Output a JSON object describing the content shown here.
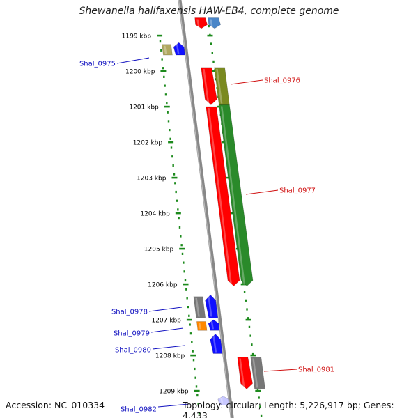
{
  "title": "Shewanella halifaxensis HAW-EB4, complete genome",
  "accession_text": "Accession: NC_010334",
  "topology_text": "Topology: circular; Length: 5,226,917 bp; Genes: 4,433",
  "scale": {
    "unit": "kbp",
    "ticks": [
      {
        "label": "1199 kbp",
        "kbp": 1199
      },
      {
        "label": "1200 kbp",
        "kbp": 1200
      },
      {
        "label": "1201 kbp",
        "kbp": 1201
      },
      {
        "label": "1202 kbp",
        "kbp": 1202
      },
      {
        "label": "1203 kbp",
        "kbp": 1203
      },
      {
        "label": "1204 kbp",
        "kbp": 1204
      },
      {
        "label": "1205 kbp",
        "kbp": 1205
      },
      {
        "label": "1206 kbp",
        "kbp": 1206
      },
      {
        "label": "1207 kbp",
        "kbp": 1207
      },
      {
        "label": "1208 kbp",
        "kbp": 1208
      },
      {
        "label": "1209 kbp",
        "kbp": 1209
      }
    ]
  },
  "gene_labels": [
    {
      "text": "Shal_0975",
      "side": "left",
      "color": "#1010c0"
    },
    {
      "text": "Shal_0976",
      "side": "right",
      "color": "#d01010"
    },
    {
      "text": "Shal_0977",
      "side": "right",
      "color": "#d01010"
    },
    {
      "text": "Shal_0978",
      "side": "left",
      "color": "#1010c0"
    },
    {
      "text": "Shal_0979",
      "side": "left",
      "color": "#1010c0"
    },
    {
      "text": "Shal_0980",
      "side": "left",
      "color": "#1010c0"
    },
    {
      "text": "Shal_0981",
      "side": "right",
      "color": "#d01010"
    },
    {
      "text": "Shal_0982",
      "side": "left",
      "color": "#1010c0"
    }
  ],
  "features": [
    {
      "name": "feature-red-top",
      "start_kbp": 1198.5,
      "end_kbp": 1198.8,
      "color": "#ff0000",
      "track": 1,
      "strand": "-"
    },
    {
      "name": "feature-steelblue-top",
      "start_kbp": 1198.5,
      "end_kbp": 1198.8,
      "color": "#4a86c8",
      "track": 2,
      "strand": "-"
    },
    {
      "name": "feature-khaki-0975",
      "start_kbp": 1199.25,
      "end_kbp": 1199.55,
      "color": "#b0a860",
      "track": -2,
      "strand": "none"
    },
    {
      "name": "feature-blue-0975",
      "start_kbp": 1199.2,
      "end_kbp": 1199.55,
      "color": "#1010ff",
      "track": -1,
      "strand": "+"
    },
    {
      "name": "feature-red-0976",
      "start_kbp": 1199.9,
      "end_kbp": 1200.95,
      "color": "#ff0000",
      "track": 1,
      "strand": "-"
    },
    {
      "name": "feature-olive-0976",
      "start_kbp": 1199.9,
      "end_kbp": 1200.95,
      "color": "#7a8a20",
      "track": 2,
      "strand": "none"
    },
    {
      "name": "feature-red-0977",
      "start_kbp": 1201.0,
      "end_kbp": 1206.05,
      "color": "#ff0000",
      "track": 1,
      "strand": "-"
    },
    {
      "name": "feature-green-0977",
      "start_kbp": 1200.95,
      "end_kbp": 1206.05,
      "color": "#2a8a2a",
      "track": 2,
      "strand": "-"
    },
    {
      "name": "feature-gray-0978",
      "start_kbp": 1206.35,
      "end_kbp": 1206.95,
      "color": "#777777",
      "track": -2,
      "strand": "none"
    },
    {
      "name": "feature-blue-0978",
      "start_kbp": 1206.3,
      "end_kbp": 1206.95,
      "color": "#1010ff",
      "track": -1,
      "strand": "+"
    },
    {
      "name": "feature-orange-0979",
      "start_kbp": 1207.05,
      "end_kbp": 1207.3,
      "color": "#ff8800",
      "track": -2,
      "strand": "none"
    },
    {
      "name": "feature-blue-0979",
      "start_kbp": 1207.0,
      "end_kbp": 1207.3,
      "color": "#1010ff",
      "track": -1,
      "strand": "+"
    },
    {
      "name": "feature-blue-0980",
      "start_kbp": 1207.4,
      "end_kbp": 1207.95,
      "color": "#1010ff",
      "track": -1,
      "strand": "+"
    },
    {
      "name": "feature-red-0981",
      "start_kbp": 1208.05,
      "end_kbp": 1208.95,
      "color": "#ff0000",
      "track": 1,
      "strand": "-"
    },
    {
      "name": "feature-gray-0981",
      "start_kbp": 1208.05,
      "end_kbp": 1208.95,
      "color": "#777777",
      "track": 2,
      "strand": "none"
    },
    {
      "name": "feature-lavender-0982",
      "start_kbp": 1209.15,
      "end_kbp": 1209.4,
      "color": "#c8c8ff",
      "track": -1,
      "strand": "+"
    }
  ],
  "colors": {
    "backbone": "#888888",
    "scale_dots": "#1c8a1c",
    "tick_label": "#000000"
  }
}
